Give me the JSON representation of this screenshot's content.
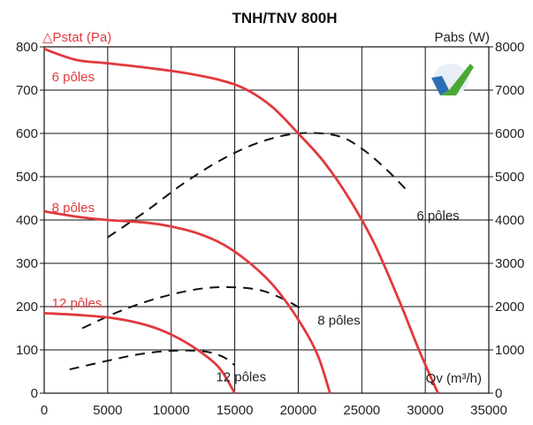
{
  "chart_data": {
    "type": "line",
    "title": "TNH/TNV 800H",
    "xlabel": "Qv (m³/h)",
    "ylabel_left": "△Pstat (Pa)",
    "ylabel_right": "Pabs (W)",
    "xlim": [
      0,
      35000
    ],
    "ylim_left": [
      0,
      800
    ],
    "ylim_right": [
      0,
      8000
    ],
    "x_ticks": [
      "0",
      "5000",
      "10000",
      "15000",
      "20000",
      "25000",
      "30000",
      "35000"
    ],
    "y_ticks_left": [
      "0",
      "100",
      "200",
      "300",
      "400",
      "500",
      "600",
      "700",
      "800"
    ],
    "y_ticks_right": [
      "0",
      "1000",
      "2000",
      "3000",
      "4000",
      "5000",
      "6000",
      "7000",
      "8000"
    ],
    "grid": true,
    "pressure_series": [
      {
        "name": "6 pôles",
        "color": "#e03a3e",
        "points": [
          [
            0,
            795
          ],
          [
            2500,
            770
          ],
          [
            5000,
            762
          ],
          [
            8000,
            752
          ],
          [
            11000,
            740
          ],
          [
            14000,
            722
          ],
          [
            16000,
            700
          ],
          [
            18000,
            660
          ],
          [
            20000,
            600
          ],
          [
            22000,
            535
          ],
          [
            24000,
            450
          ],
          [
            26000,
            345
          ],
          [
            28000,
            210
          ],
          [
            29500,
            100
          ],
          [
            31000,
            0
          ]
        ]
      },
      {
        "name": "8 pôles",
        "color": "#e03a3e",
        "points": [
          [
            0,
            420
          ],
          [
            2500,
            408
          ],
          [
            5000,
            400
          ],
          [
            8000,
            394
          ],
          [
            10000,
            385
          ],
          [
            12000,
            370
          ],
          [
            14000,
            345
          ],
          [
            16000,
            305
          ],
          [
            18000,
            250
          ],
          [
            20000,
            170
          ],
          [
            21500,
            90
          ],
          [
            22500,
            0
          ]
        ]
      },
      {
        "name": "12 pôles",
        "color": "#e03a3e",
        "points": [
          [
            0,
            185
          ],
          [
            3000,
            180
          ],
          [
            5000,
            175
          ],
          [
            7000,
            165
          ],
          [
            9000,
            148
          ],
          [
            11000,
            120
          ],
          [
            13000,
            80
          ],
          [
            14000,
            50
          ],
          [
            15000,
            0
          ]
        ]
      }
    ],
    "power_series": [
      {
        "name": "6 pôles",
        "color": "#111111",
        "points": [
          [
            5000,
            3600
          ],
          [
            8000,
            4200
          ],
          [
            11000,
            4850
          ],
          [
            14000,
            5400
          ],
          [
            17000,
            5800
          ],
          [
            20000,
            6000
          ],
          [
            23000,
            5950
          ],
          [
            25000,
            5650
          ],
          [
            27000,
            5150
          ],
          [
            28500,
            4700
          ]
        ]
      },
      {
        "name": "8 pôles",
        "color": "#111111",
        "points": [
          [
            3000,
            1500
          ],
          [
            6000,
            1900
          ],
          [
            9000,
            2200
          ],
          [
            12000,
            2400
          ],
          [
            14500,
            2450
          ],
          [
            17000,
            2380
          ],
          [
            19000,
            2150
          ],
          [
            20500,
            1900
          ]
        ]
      },
      {
        "name": "12 pôles",
        "color": "#111111",
        "points": [
          [
            2000,
            550
          ],
          [
            5000,
            750
          ],
          [
            7500,
            900
          ],
          [
            10000,
            980
          ],
          [
            12500,
            970
          ],
          [
            14000,
            850
          ],
          [
            15000,
            650
          ]
        ]
      }
    ],
    "pressure_labels": [
      "6 pôles",
      "8 pôles",
      "12 pôles"
    ],
    "power_labels": [
      "6 pôles",
      "8 pôles",
      "12 pôles"
    ]
  },
  "colors": {
    "pressure": "#e03a3e",
    "power": "#111111",
    "grid": "#111111",
    "logo_blue": "#2a6fb5",
    "logo_green": "#4aa832"
  },
  "logo": {
    "icon": "checkmark-logo-icon"
  }
}
